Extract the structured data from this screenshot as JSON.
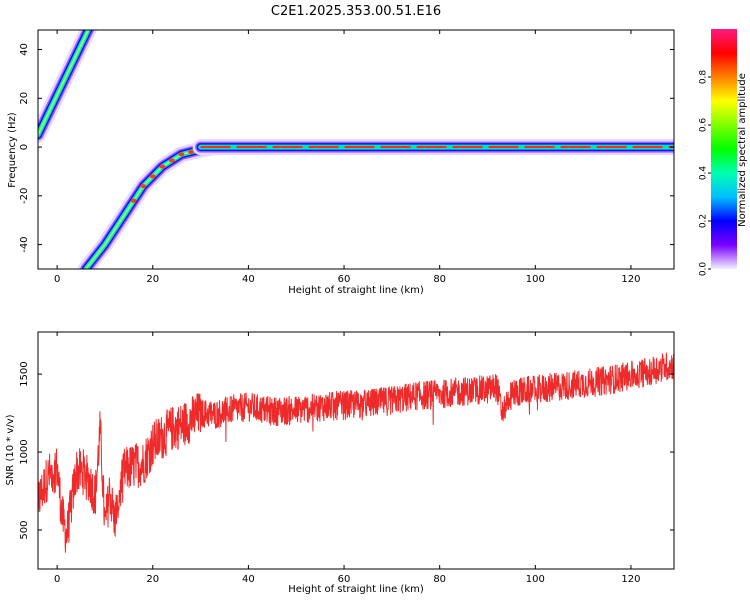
{
  "title": "C2E1.2025.353.00.51.E16",
  "chart_data": [
    {
      "type": "heatmap",
      "xlabel": "Height of straight line (km)",
      "ylabel": "Frequency (Hz)",
      "xlim": [
        -4,
        129
      ],
      "ylim": [
        -50,
        48
      ],
      "xticks": [
        0,
        20,
        40,
        60,
        80,
        100,
        120
      ],
      "yticks": [
        -40,
        -20,
        0,
        20,
        40
      ],
      "traces": [
        {
          "segment": "upper-left",
          "x": [
            -4,
            7
          ],
          "y": [
            5,
            50
          ]
        },
        {
          "segment": "rising",
          "x": [
            6,
            10,
            14,
            18,
            22,
            26,
            30,
            33
          ],
          "y": [
            -50,
            -40,
            -28,
            -16,
            -8,
            -3,
            -1,
            0
          ]
        },
        {
          "segment": "flat",
          "x": [
            30,
            129
          ],
          "y": [
            0,
            0
          ]
        }
      ],
      "colorbar": {
        "label": "Normalized spectral amplitude",
        "range": [
          0,
          1
        ],
        "ticks": [
          0.0,
          0.2,
          0.4,
          0.6,
          0.8
        ],
        "tick_labels": [
          "0.0",
          "0.2",
          "0.4",
          "0.6",
          "0.8"
        ]
      }
    },
    {
      "type": "line",
      "xlabel": "Height of straight line (km)",
      "ylabel": "SNR (10 * v/v)",
      "xlim": [
        -4,
        129
      ],
      "ylim": [
        250,
        1770
      ],
      "xticks": [
        0,
        20,
        40,
        60,
        80,
        100,
        120
      ],
      "yticks": [
        500,
        1000,
        1500
      ],
      "color": "#ee2a2a",
      "x": [
        -4,
        -2,
        0,
        1,
        2,
        4,
        6,
        8,
        9,
        10,
        11,
        12,
        14,
        16,
        18,
        20,
        22,
        24,
        26,
        28,
        30,
        33,
        36,
        40,
        45,
        50,
        55,
        60,
        65,
        70,
        75,
        80,
        85,
        90,
        92,
        93,
        95,
        100,
        105,
        110,
        115,
        120,
        125,
        129
      ],
      "y": [
        680,
        840,
        900,
        600,
        460,
        880,
        870,
        720,
        1150,
        520,
        750,
        560,
        880,
        910,
        930,
        1050,
        1100,
        1150,
        1170,
        1210,
        1250,
        1240,
        1270,
        1290,
        1260,
        1270,
        1290,
        1300,
        1310,
        1330,
        1360,
        1370,
        1390,
        1400,
        1420,
        1250,
        1380,
        1400,
        1420,
        1440,
        1460,
        1490,
        1530,
        1560
      ]
    }
  ]
}
